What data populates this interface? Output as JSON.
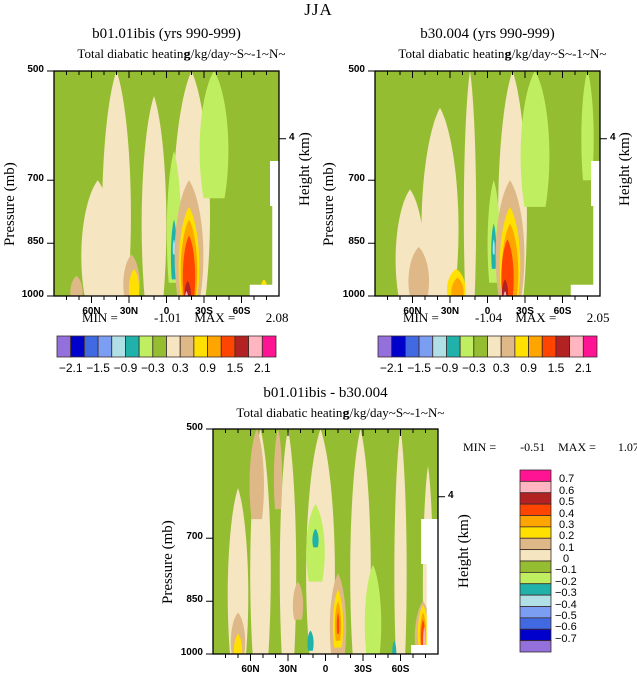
{
  "main_title": "JJA",
  "palette": [
    "#9370DB",
    "#0000CD",
    "#4169E1",
    "#7B9DF2",
    "#B0E0E6",
    "#20B2AA",
    "#BFEF60",
    "#95BD32",
    "#F5E5C0",
    "#DEB887",
    "#FFE000",
    "#FFA500",
    "#FF4500",
    "#B22222",
    "#FFB6C1",
    "#FF1493"
  ],
  "chart_data": [
    {
      "type": "heatmap",
      "title": "b01.01ibis (yrs 990-999)",
      "subtitle_left": "Total diabatic heating",
      "subtitle_overlap": "g/kg/day",
      "subtitle_right": "~S~-1~N~",
      "ylabel": "Pressure (mb)",
      "ylabel_right": "Height (km)",
      "yticks": [
        "500",
        "700",
        "850",
        "1000"
      ],
      "ytick_values": [
        500,
        700,
        850,
        1000
      ],
      "yright_ticks": [
        "4"
      ],
      "xticks": [
        "60N",
        "30N",
        "0",
        "30S",
        "60S"
      ],
      "xtick_values": [
        60,
        30,
        0,
        -30,
        -60
      ],
      "xlim": [
        90,
        -90
      ],
      "ylim": [
        500,
        1000
      ],
      "min_label": "MIN =",
      "min_value": "-1.01",
      "max_label": "MAX =",
      "max_value": "2.08",
      "colorbar": {
        "orientation": "horizontal",
        "levels": [
          -2.1,
          -1.8,
          -1.5,
          -1.2,
          -0.9,
          -0.6,
          -0.3,
          0,
          0.3,
          0.6,
          0.9,
          1.2,
          1.5,
          1.8,
          2.1
        ],
        "labels": [
          "-2.1",
          "-1.5",
          "-0.9",
          "-0.3",
          "0.3",
          "0.9",
          "1.5",
          "2.1"
        ]
      },
      "features": [
        {
          "lat": 40,
          "p_top": 500,
          "p_bot": 1000,
          "width": 14,
          "level": 8
        },
        {
          "lat": 55,
          "p_top": 700,
          "p_bot": 1000,
          "width": 16,
          "level": 8
        },
        {
          "lat": 10,
          "p_top": 540,
          "p_bot": 1000,
          "width": 12,
          "level": 8
        },
        {
          "lat": -20,
          "p_top": 500,
          "p_bot": 1000,
          "width": 18,
          "level": 8
        },
        {
          "lat": -38,
          "p_top": 500,
          "p_bot": 740,
          "width": 14,
          "level": 6
        },
        {
          "lat": -6,
          "p_top": 640,
          "p_bot": 960,
          "width": 7,
          "level": 6
        },
        {
          "lat": -6,
          "p_top": 790,
          "p_bot": 950,
          "width": 3,
          "level": 5
        },
        {
          "lat": -6,
          "p_top": 840,
          "p_bot": 880,
          "width": 1.2,
          "level": 4
        },
        {
          "lat": -18,
          "p_top": 700,
          "p_bot": 1000,
          "width": 14,
          "level": 9
        },
        {
          "lat": -18,
          "p_top": 760,
          "p_bot": 1000,
          "width": 10,
          "level": 10
        },
        {
          "lat": -18,
          "p_top": 790,
          "p_bot": 1000,
          "width": 8,
          "level": 11
        },
        {
          "lat": -18,
          "p_top": 830,
          "p_bot": 1000,
          "width": 6,
          "level": 12
        },
        {
          "lat": -17,
          "p_top": 955,
          "p_bot": 1000,
          "width": 3,
          "level": 13
        },
        {
          "lat": -16,
          "p_top": 985,
          "p_bot": 1000,
          "width": 1.5,
          "level": 14
        },
        {
          "lat": 28,
          "p_top": 880,
          "p_bot": 1000,
          "width": 8,
          "level": 9
        },
        {
          "lat": 26,
          "p_top": 920,
          "p_bot": 1000,
          "width": 5,
          "level": 10
        },
        {
          "lat": 72,
          "p_top": 940,
          "p_bot": 1000,
          "width": 6,
          "level": 9
        },
        {
          "lat": -78,
          "p_top": 950,
          "p_bot": 990,
          "width": 3,
          "level": 10
        }
      ]
    },
    {
      "type": "heatmap",
      "title": "b30.004 (yrs 990-999)",
      "subtitle_left": "Total diabatic heating",
      "subtitle_overlap": "g/kg/day",
      "subtitle_right": "~S~-1~N~",
      "ylabel": "Pressure (mb)",
      "ylabel_right": "Height (km)",
      "yticks": [
        "500",
        "700",
        "850",
        "1000"
      ],
      "ytick_values": [
        500,
        700,
        850,
        1000
      ],
      "yright_ticks": [
        "4"
      ],
      "xticks": [
        "60N",
        "30N",
        "0",
        "30S",
        "60S"
      ],
      "xtick_values": [
        60,
        30,
        0,
        -30,
        -60
      ],
      "xlim": [
        90,
        -90
      ],
      "ylim": [
        500,
        1000
      ],
      "min_label": "MIN =",
      "min_value": "-1.04",
      "max_label": "MAX =",
      "max_value": "2.05",
      "colorbar": {
        "orientation": "horizontal",
        "levels": [
          -2.1,
          -1.8,
          -1.5,
          -1.2,
          -0.9,
          -0.6,
          -0.3,
          0,
          0.3,
          0.6,
          0.9,
          1.2,
          1.5,
          1.8,
          2.1
        ],
        "labels": [
          "-2.1",
          "-1.5",
          "-0.9",
          "-0.3",
          "0.3",
          "0.9",
          "1.5",
          "2.1"
        ]
      },
      "features": [
        {
          "lat": 38,
          "p_top": 560,
          "p_bot": 1000,
          "width": 18,
          "level": 8
        },
        {
          "lat": 62,
          "p_top": 720,
          "p_bot": 1000,
          "width": 14,
          "level": 8
        },
        {
          "lat": 14,
          "p_top": 500,
          "p_bot": 1000,
          "width": 6,
          "level": 8
        },
        {
          "lat": -20,
          "p_top": 500,
          "p_bot": 1000,
          "width": 14,
          "level": 8
        },
        {
          "lat": -38,
          "p_top": 500,
          "p_bot": 760,
          "width": 14,
          "level": 6
        },
        {
          "lat": -80,
          "p_top": 500,
          "p_bot": 700,
          "width": 6,
          "level": 6
        },
        {
          "lat": -5,
          "p_top": 700,
          "p_bot": 960,
          "width": 6,
          "level": 6
        },
        {
          "lat": -5,
          "p_top": 800,
          "p_bot": 920,
          "width": 2.5,
          "level": 5
        },
        {
          "lat": -5,
          "p_top": 840,
          "p_bot": 880,
          "width": 1,
          "level": 4
        },
        {
          "lat": -18,
          "p_top": 700,
          "p_bot": 1000,
          "width": 14,
          "level": 9
        },
        {
          "lat": -18,
          "p_top": 760,
          "p_bot": 1000,
          "width": 10,
          "level": 10
        },
        {
          "lat": -18,
          "p_top": 800,
          "p_bot": 1000,
          "width": 8,
          "level": 11
        },
        {
          "lat": -16,
          "p_top": 840,
          "p_bot": 1000,
          "width": 6,
          "level": 12
        },
        {
          "lat": -14,
          "p_top": 950,
          "p_bot": 1000,
          "width": 3,
          "level": 13
        },
        {
          "lat": -14,
          "p_top": 985,
          "p_bot": 1000,
          "width": 1.5,
          "level": 14
        },
        {
          "lat": 25,
          "p_top": 920,
          "p_bot": 1000,
          "width": 9,
          "level": 10
        },
        {
          "lat": 24,
          "p_top": 945,
          "p_bot": 1000,
          "width": 6,
          "level": 11
        },
        {
          "lat": 55,
          "p_top": 860,
          "p_bot": 1000,
          "width": 10,
          "level": 9
        }
      ]
    },
    {
      "type": "heatmap",
      "title": "b01.01ibis - b30.004",
      "subtitle_left": "Total diabatic heating",
      "subtitle_overlap": "g/kg/day",
      "subtitle_right": "~S~-1~N~",
      "ylabel": "Pressure (mb)",
      "ylabel_right": "Height (km)",
      "yticks": [
        "500",
        "700",
        "850",
        "1000"
      ],
      "ytick_values": [
        500,
        700,
        850,
        1000
      ],
      "yright_ticks": [
        "4"
      ],
      "xticks": [
        "60N",
        "30N",
        "0",
        "30S",
        "60S"
      ],
      "xtick_values": [
        60,
        30,
        0,
        -30,
        -60
      ],
      "xlim": [
        90,
        -90
      ],
      "ylim": [
        500,
        1000
      ],
      "min_label": "MIN =",
      "min_value": "-0.51",
      "max_label": "MAX =",
      "max_value": "1.07",
      "colorbar": {
        "orientation": "vertical",
        "levels": [
          -0.7,
          -0.6,
          -0.5,
          -0.4,
          -0.3,
          -0.2,
          -0.1,
          0,
          0.1,
          0.2,
          0.3,
          0.4,
          0.5,
          0.6,
          0.7
        ],
        "labels": [
          "-0.7",
          "-0.6",
          "-0.5",
          "-0.4",
          "-0.3",
          "-0.2",
          "-0.1",
          "0",
          "0.1",
          "0.2",
          "0.3",
          "0.4",
          "0.5",
          "0.6",
          "0.7"
        ]
      },
      "features": [
        {
          "lat": 70,
          "p_top": 600,
          "p_bot": 1000,
          "width": 10,
          "level": 8
        },
        {
          "lat": 52,
          "p_top": 500,
          "p_bot": 1000,
          "width": 10,
          "level": 8
        },
        {
          "lat": 30,
          "p_top": 500,
          "p_bot": 1000,
          "width": 8,
          "level": 8
        },
        {
          "lat": 4,
          "p_top": 500,
          "p_bot": 1000,
          "width": 14,
          "level": 8
        },
        {
          "lat": -28,
          "p_top": 500,
          "p_bot": 1000,
          "width": 10,
          "level": 8
        },
        {
          "lat": -60,
          "p_top": 500,
          "p_bot": 1000,
          "width": 6,
          "level": 8
        },
        {
          "lat": -82,
          "p_top": 560,
          "p_bot": 1000,
          "width": 5,
          "level": 8
        },
        {
          "lat": 55,
          "p_top": 500,
          "p_bot": 660,
          "width": 7,
          "level": 9
        },
        {
          "lat": 38,
          "p_top": 500,
          "p_bot": 640,
          "width": 4,
          "level": 9
        },
        {
          "lat": 22,
          "p_top": 800,
          "p_bot": 900,
          "width": 5,
          "level": 9
        },
        {
          "lat": 70,
          "p_top": 880,
          "p_bot": 1000,
          "width": 7,
          "level": 9
        },
        {
          "lat": 70,
          "p_top": 940,
          "p_bot": 1000,
          "width": 4,
          "level": 10
        },
        {
          "lat": -10,
          "p_top": 780,
          "p_bot": 1000,
          "width": 8,
          "level": 9
        },
        {
          "lat": -10,
          "p_top": 820,
          "p_bot": 980,
          "width": 5,
          "level": 10
        },
        {
          "lat": -10,
          "p_top": 850,
          "p_bot": 960,
          "width": 3,
          "level": 11
        },
        {
          "lat": -10,
          "p_top": 880,
          "p_bot": 940,
          "width": 1.2,
          "level": 12
        },
        {
          "lat": 8,
          "p_top": 630,
          "p_bot": 800,
          "width": 9,
          "level": 6
        },
        {
          "lat": 8,
          "p_top": 680,
          "p_bot": 720,
          "width": 3,
          "level": 5
        },
        {
          "lat": -38,
          "p_top": 760,
          "p_bot": 1000,
          "width": 8,
          "level": 6
        },
        {
          "lat": -78,
          "p_top": 850,
          "p_bot": 1000,
          "width": 8,
          "level": 9
        },
        {
          "lat": -78,
          "p_top": 860,
          "p_bot": 990,
          "width": 5,
          "level": 10
        },
        {
          "lat": -78,
          "p_top": 880,
          "p_bot": 985,
          "width": 3,
          "level": 11
        },
        {
          "lat": -78,
          "p_top": 900,
          "p_bot": 980,
          "width": 2,
          "level": 12
        },
        {
          "lat": -79,
          "p_top": 920,
          "p_bot": 985,
          "width": 1.2,
          "level": 14
        },
        {
          "lat": 12,
          "p_top": 930,
          "p_bot": 990,
          "width": 3,
          "level": 5
        },
        {
          "lat": -55,
          "p_top": 960,
          "p_bot": 1000,
          "width": 2,
          "level": 5
        }
      ]
    }
  ]
}
